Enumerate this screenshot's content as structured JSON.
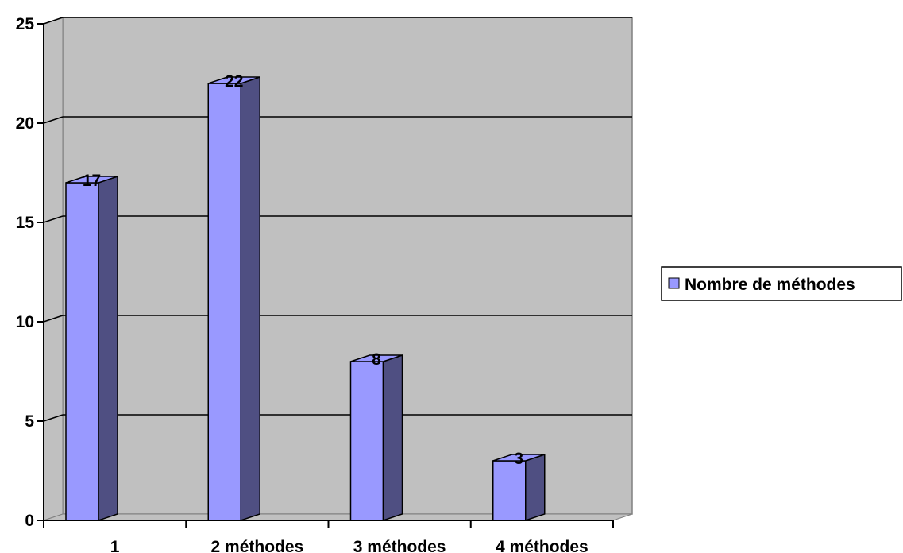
{
  "chart_data": {
    "type": "bar",
    "title": "",
    "xlabel": "",
    "ylabel": "",
    "categories": [
      "1",
      "2 méthodes",
      "3 méthodes",
      "4 méthodes"
    ],
    "series": [
      {
        "name": "Nombre de méthodes",
        "values": [
          17,
          22,
          8,
          3
        ]
      }
    ],
    "ylim": [
      0,
      25
    ],
    "y_ticks": [
      0,
      5,
      10,
      15,
      20,
      25
    ],
    "grid": true,
    "legend_position": "right",
    "three_d": true,
    "colors": {
      "bar_front": "#9999ff",
      "bar_side": "#4f4f82",
      "bar_top": "#9999ff",
      "wall": "#c0c0c0",
      "floor": "#c0c0c0",
      "gridline": "#000000"
    }
  }
}
